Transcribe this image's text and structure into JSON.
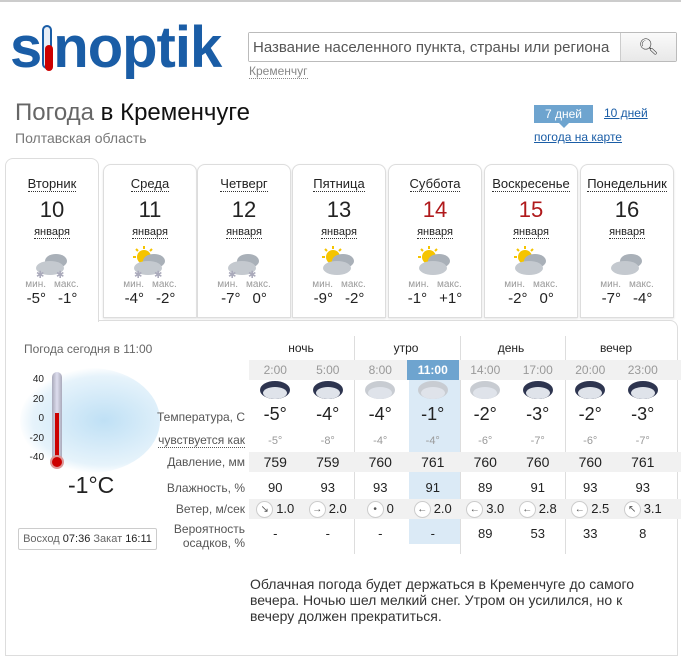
{
  "logo": {
    "text": "sinoptik"
  },
  "search": {
    "placeholder": "Название населенного пункта, страны или региона",
    "recent": "Кременчуг",
    "icon": "search-icon"
  },
  "header": {
    "title_prefix": "Погода",
    "title_city": "в Кременчуге",
    "region": "Полтавская область",
    "tab_7": "7 дней",
    "tab_10": "10 дней",
    "map_link": "погода на карте"
  },
  "colors": {
    "brand": "#1a5da6",
    "weekend": "#b0191b",
    "highlight": "#dbeaf6",
    "active_tab": "#6ea4cf"
  },
  "days": [
    {
      "name": "Вторник",
      "date": "10",
      "month": "января",
      "min_label": "мин.",
      "max_label": "макс.",
      "min": "-5°",
      "max": "-1°",
      "icon": "cloudy-snow-icon",
      "weekend": false
    },
    {
      "name": "Среда",
      "date": "11",
      "month": "января",
      "min_label": "мин.",
      "max_label": "макс.",
      "min": "-4°",
      "max": "-2°",
      "icon": "partly-cloudy-snow-icon",
      "weekend": false
    },
    {
      "name": "Четверг",
      "date": "12",
      "month": "января",
      "min_label": "мин.",
      "max_label": "макс.",
      "min": "-7°",
      "max": "0°",
      "icon": "cloudy-light-snow-icon",
      "weekend": false
    },
    {
      "name": "Пятница",
      "date": "13",
      "month": "января",
      "min_label": "мин.",
      "max_label": "макс.",
      "min": "-9°",
      "max": "-2°",
      "icon": "sun-cloud-icon",
      "weekend": false
    },
    {
      "name": "Суббота",
      "date": "14",
      "month": "января",
      "min_label": "мин.",
      "max_label": "макс.",
      "min": "-1°",
      "max": "+1°",
      "icon": "partly-cloudy-icon",
      "weekend": true
    },
    {
      "name": "Воскресенье",
      "date": "15",
      "month": "января",
      "min_label": "мин.",
      "max_label": "макс.",
      "min": "-2°",
      "max": "0°",
      "icon": "partly-cloudy-icon",
      "weekend": true
    },
    {
      "name": "Понедельник",
      "date": "16",
      "month": "января",
      "min_label": "мин.",
      "max_label": "макс.",
      "min": "-7°",
      "max": "-4°",
      "icon": "cloudy-icon",
      "weekend": false
    }
  ],
  "now": {
    "label": "Погода сегодня в 11:00",
    "temp": "-1°C",
    "scale": [
      "40",
      "20",
      "0",
      "-20",
      "-40"
    ],
    "thermometer_value": -1,
    "sunrise_label": "Восход",
    "sunrise": "07:36",
    "sunset_label": "Закат",
    "sunset": "16:11"
  },
  "detail": {
    "periods": [
      "ночь",
      "утро",
      "день",
      "вечер"
    ],
    "times": [
      "2:00",
      "5:00",
      "8:00",
      "11:00",
      "14:00",
      "17:00",
      "20:00",
      "23:00"
    ],
    "selected_time": "11:00",
    "icons": [
      "night-cloud-snow-icon",
      "night-cloud-snow-icon",
      "cloud-snow-icon",
      "cloud-snow-icon",
      "cloud-snow-icon",
      "night-cloud-snow-icon",
      "night-cloud-icon",
      "night-cloud-icon"
    ],
    "labels": {
      "temp": "Температура, С",
      "feels": "чувствуется как",
      "pressure": "Давление, мм",
      "humidity": "Влажность, %",
      "wind": "Ветер, м/сек",
      "precip": "Вероятность осадков, %"
    },
    "temp": [
      "-5°",
      "-4°",
      "-4°",
      "-1°",
      "-2°",
      "-3°",
      "-2°",
      "-3°"
    ],
    "feels": [
      "-5°",
      "-8°",
      "-4°",
      "-4°",
      "-6°",
      "-7°",
      "-6°",
      "-7°"
    ],
    "pressure": [
      "759",
      "759",
      "760",
      "761",
      "760",
      "760",
      "760",
      "761"
    ],
    "humidity": [
      "90",
      "93",
      "93",
      "91",
      "89",
      "91",
      "93",
      "93"
    ],
    "wind_dir": [
      "↘",
      "→",
      "•",
      "←",
      "←",
      "←",
      "←",
      "↖"
    ],
    "wind": [
      "1.0",
      "2.0",
      "0",
      "2.0",
      "3.0",
      "2.8",
      "2.5",
      "3.1"
    ],
    "precip": [
      "-",
      "-",
      "-",
      "-",
      "89",
      "53",
      "33",
      "8"
    ]
  },
  "description": "Облачная погода будет держаться в Кременчуге до самого вечера. Ночью шел мелкий снег. Утром он усилился, но к вечеру должен прекратиться."
}
